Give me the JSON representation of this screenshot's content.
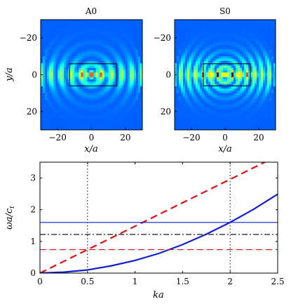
{
  "chart_data": [
    {
      "type": "heatmap",
      "title": "A0",
      "xlabel": "x/a",
      "ylabel": "y/a",
      "xlim": [
        -30,
        30
      ],
      "ylim": [
        30,
        -30
      ],
      "xticks": [
        -20,
        0,
        20
      ],
      "yticks": [
        -20,
        0,
        20
      ],
      "xtick_labels": [
        "−20",
        "0",
        "20"
      ],
      "ytick_labels": [
        "−20",
        "0",
        "20"
      ],
      "overlay_rect": {
        "x": [
          -13,
          15
        ],
        "y": [
          -6,
          6
        ]
      },
      "colormap": "jet",
      "field": {
        "description_hidden": true,
        "mode": "flexural",
        "wavelength": 3.0,
        "core_half_length": 6,
        "circle_radius": 30
      }
    },
    {
      "type": "heatmap",
      "title": "S0",
      "xlabel": "x/a",
      "ylabel": "",
      "xlim": [
        -30,
        30
      ],
      "ylim": [
        30,
        -30
      ],
      "xticks": [
        -20,
        0,
        20
      ],
      "yticks": [
        -20,
        0,
        20
      ],
      "xtick_labels": [
        "−20",
        "0",
        "20"
      ],
      "ytick_labels": [
        "−20",
        "0",
        "20"
      ],
      "overlay_rect": {
        "x": [
          -13,
          15
        ],
        "y": [
          -6,
          6
        ]
      },
      "colormap": "jet",
      "field": {
        "description_hidden": true,
        "mode": "longitudinal",
        "wavelength": 2.2,
        "core_half_length": 12,
        "circle_radius": 30
      }
    },
    {
      "type": "line",
      "xlabel": "ka",
      "ylabel": "ωa/c_t",
      "xlim": [
        0,
        2.5
      ],
      "ylim": [
        0,
        3.5
      ],
      "xticks": [
        0,
        0.5,
        1,
        1.5,
        2,
        2.5
      ],
      "yticks": [
        0,
        1,
        2,
        3
      ],
      "xtick_labels": [
        "0",
        "0.5",
        "1",
        "1.5",
        "2",
        "2.5"
      ],
      "ytick_labels": [
        "0",
        "1",
        "2",
        "3"
      ],
      "vlines": [
        0.5,
        2
      ],
      "series": [
        {
          "color": "#e01010",
          "style": "dashed",
          "width": 2.2,
          "x": [
            0,
            0.5,
            1,
            1.5,
            2,
            2.5
          ],
          "y": [
            0,
            0.74,
            1.48,
            2.22,
            2.96,
            3.7
          ]
        },
        {
          "color": "#1020d0",
          "style": "solid",
          "width": 2.2,
          "x": [
            0,
            0.25,
            0.5,
            0.75,
            1,
            1.25,
            1.5,
            1.75,
            2,
            2.25,
            2.5
          ],
          "y": [
            0,
            0.03,
            0.1,
            0.23,
            0.4,
            0.62,
            0.9,
            1.23,
            1.6,
            2.02,
            2.49
          ]
        },
        {
          "color": "#1020d0",
          "style": "solid",
          "width": 1.1,
          "x": [
            0,
            2.5
          ],
          "y": [
            1.6,
            1.6
          ]
        },
        {
          "color": "#000000",
          "style": "dashdot",
          "width": 1.1,
          "x": [
            0,
            2.5
          ],
          "y": [
            1.22,
            1.22
          ]
        },
        {
          "color": "#e01010",
          "style": "dashed",
          "width": 1.1,
          "x": [
            0,
            2.5
          ],
          "y": [
            0.74,
            0.74
          ]
        }
      ]
    }
  ]
}
